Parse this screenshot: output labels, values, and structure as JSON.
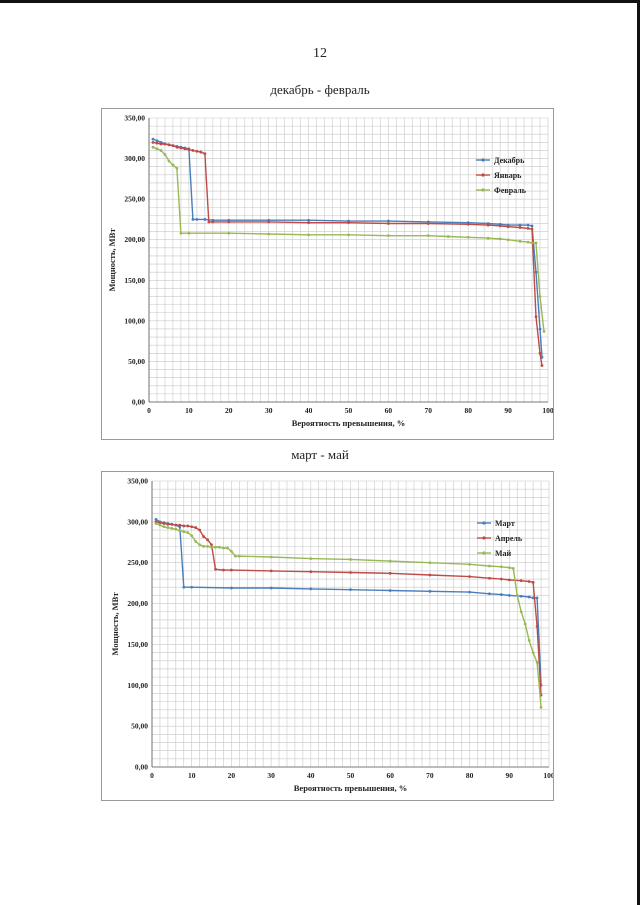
{
  "page": {
    "number": "12"
  },
  "chart_data": [
    {
      "type": "line",
      "title": "декабрь - февраль",
      "xlabel": "Вероятность превышения, %",
      "ylabel": "Мощность, МВт",
      "xlim": [
        0,
        100
      ],
      "ylim": [
        0,
        350
      ],
      "xticks": [
        "0",
        "10",
        "20",
        "30",
        "40",
        "50",
        "60",
        "70",
        "80",
        "90",
        "100"
      ],
      "yticks": [
        "0,00",
        "50,00",
        "100,00",
        "150,00",
        "200,00",
        "250,00",
        "300,00",
        "350,00"
      ],
      "grid": true,
      "legend_position": "right",
      "series": [
        {
          "name": "Декабрь",
          "color": "#4a7ebb",
          "points": [
            [
              1,
              324
            ],
            [
              2,
              322
            ],
            [
              3,
              320
            ],
            [
              4,
              318
            ],
            [
              5,
              317
            ],
            [
              6,
              316
            ],
            [
              7,
              315
            ],
            [
              8,
              314
            ],
            [
              9,
              313
            ],
            [
              10,
              312
            ],
            [
              11,
              225
            ],
            [
              12,
              225
            ],
            [
              14,
              225
            ],
            [
              16,
              224
            ],
            [
              20,
              224
            ],
            [
              30,
              224
            ],
            [
              40,
              224
            ],
            [
              50,
              223
            ],
            [
              60,
              223
            ],
            [
              70,
              222
            ],
            [
              80,
              221
            ],
            [
              85,
              220
            ],
            [
              88,
              219
            ],
            [
              90,
              218
            ],
            [
              93,
              218
            ],
            [
              95,
              218
            ],
            [
              96,
              217
            ],
            [
              97,
              160
            ],
            [
              98,
              90
            ],
            [
              98.5,
              55
            ]
          ]
        },
        {
          "name": "Январь",
          "color": "#be4b48",
          "points": [
            [
              1,
              320
            ],
            [
              2,
              319
            ],
            [
              3,
              318
            ],
            [
              4,
              318
            ],
            [
              5,
              317
            ],
            [
              6,
              316
            ],
            [
              7,
              314
            ],
            [
              8,
              313
            ],
            [
              9,
              312
            ],
            [
              10,
              311
            ],
            [
              11,
              310
            ],
            [
              12,
              309
            ],
            [
              13,
              308
            ],
            [
              14,
              306
            ],
            [
              15,
              222
            ],
            [
              16,
              222
            ],
            [
              20,
              222
            ],
            [
              30,
              222
            ],
            [
              40,
              221
            ],
            [
              50,
              221
            ],
            [
              60,
              220
            ],
            [
              70,
              220
            ],
            [
              80,
              219
            ],
            [
              85,
              218
            ],
            [
              88,
              217
            ],
            [
              90,
              216
            ],
            [
              93,
              215
            ],
            [
              95,
              214
            ],
            [
              96,
              213
            ],
            [
              97,
              105
            ],
            [
              98,
              60
            ],
            [
              98.5,
              45
            ]
          ]
        },
        {
          "name": "Февраль",
          "color": "#98b954",
          "points": [
            [
              1,
              314
            ],
            [
              2,
              312
            ],
            [
              3,
              310
            ],
            [
              4,
              305
            ],
            [
              5,
              297
            ],
            [
              6,
              292
            ],
            [
              7,
              288
            ],
            [
              8,
              208
            ],
            [
              10,
              208
            ],
            [
              20,
              208
            ],
            [
              30,
              207
            ],
            [
              40,
              206
            ],
            [
              50,
              206
            ],
            [
              60,
              205
            ],
            [
              70,
              205
            ],
            [
              75,
              204
            ],
            [
              80,
              203
            ],
            [
              85,
              202
            ],
            [
              88,
              201
            ],
            [
              90,
              200
            ],
            [
              93,
              198
            ],
            [
              95,
              197
            ],
            [
              96,
              196
            ],
            [
              97,
              196
            ],
            [
              98,
              130
            ],
            [
              99,
              87
            ]
          ]
        }
      ]
    },
    {
      "type": "line",
      "title": "март - май",
      "xlabel": "Вероятность превышения, %",
      "ylabel": "Мощность, МВт",
      "xlim": [
        0,
        100
      ],
      "ylim": [
        0,
        350
      ],
      "xticks": [
        "0",
        "10",
        "20",
        "30",
        "40",
        "50",
        "60",
        "70",
        "80",
        "90",
        "100"
      ],
      "yticks": [
        "0,00",
        "50,00",
        "100,00",
        "150,00",
        "200,00",
        "250,00",
        "300,00",
        "350,00"
      ],
      "grid": true,
      "legend_position": "right",
      "series": [
        {
          "name": "Март",
          "color": "#4a7ebb",
          "points": [
            [
              1,
              303
            ],
            [
              2,
              300
            ],
            [
              3,
              299
            ],
            [
              4,
              298
            ],
            [
              5,
              297
            ],
            [
              6,
              296
            ],
            [
              7,
              294
            ],
            [
              8,
              220
            ],
            [
              10,
              220
            ],
            [
              20,
              219
            ],
            [
              30,
              219
            ],
            [
              40,
              218
            ],
            [
              50,
              217
            ],
            [
              60,
              216
            ],
            [
              70,
              215
            ],
            [
              80,
              214
            ],
            [
              85,
              212
            ],
            [
              88,
              211
            ],
            [
              90,
              210
            ],
            [
              93,
              209
            ],
            [
              95,
              208
            ],
            [
              96,
              207
            ],
            [
              97,
              207
            ],
            [
              98,
              100
            ]
          ]
        },
        {
          "name": "Апрель",
          "color": "#be4b48",
          "points": [
            [
              1,
              300
            ],
            [
              2,
              299
            ],
            [
              3,
              298
            ],
            [
              4,
              297
            ],
            [
              5,
              297
            ],
            [
              6,
              296
            ],
            [
              7,
              296
            ],
            [
              8,
              295
            ],
            [
              9,
              295
            ],
            [
              10,
              294
            ],
            [
              11,
              293
            ],
            [
              12,
              290
            ],
            [
              13,
              282
            ],
            [
              14,
              278
            ],
            [
              15,
              272
            ],
            [
              16,
              242
            ],
            [
              18,
              241
            ],
            [
              20,
              241
            ],
            [
              30,
              240
            ],
            [
              40,
              239
            ],
            [
              50,
              238
            ],
            [
              60,
              237
            ],
            [
              70,
              235
            ],
            [
              80,
              233
            ],
            [
              85,
              231
            ],
            [
              88,
              230
            ],
            [
              90,
              229
            ],
            [
              93,
              228
            ],
            [
              95,
              227
            ],
            [
              96,
              226
            ],
            [
              97,
              172
            ],
            [
              98,
              88
            ]
          ]
        },
        {
          "name": "Май",
          "color": "#98b954",
          "points": [
            [
              1,
              298
            ],
            [
              2,
              296
            ],
            [
              3,
              294
            ],
            [
              4,
              293
            ],
            [
              5,
              292
            ],
            [
              6,
              291
            ],
            [
              7,
              289
            ],
            [
              8,
              288
            ],
            [
              9,
              287
            ],
            [
              10,
              283
            ],
            [
              11,
              276
            ],
            [
              12,
              272
            ],
            [
              13,
              270
            ],
            [
              14,
              270
            ],
            [
              15,
              269
            ],
            [
              16,
              269
            ],
            [
              17,
              269
            ],
            [
              18,
              268
            ],
            [
              19,
              268
            ],
            [
              20,
              264
            ],
            [
              21,
              258
            ],
            [
              22,
              258
            ],
            [
              30,
              257
            ],
            [
              40,
              255
            ],
            [
              50,
              254
            ],
            [
              60,
              252
            ],
            [
              70,
              250
            ],
            [
              80,
              248
            ],
            [
              85,
              246
            ],
            [
              88,
              245
            ],
            [
              90,
              244
            ],
            [
              91,
              243
            ],
            [
              92,
              210
            ],
            [
              93,
              190
            ],
            [
              94,
              175
            ],
            [
              95,
              155
            ],
            [
              96,
              140
            ],
            [
              97,
              128
            ],
            [
              98,
              73
            ]
          ]
        }
      ]
    }
  ]
}
